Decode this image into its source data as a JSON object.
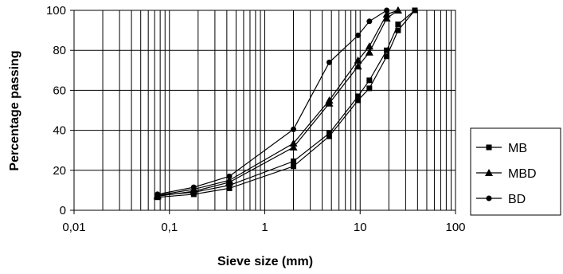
{
  "chart_data": {
    "type": "line",
    "title": "",
    "xlabel": "Sieve size (mm)",
    "ylabel": "Percentage passing",
    "x_scale": "log",
    "xlim": [
      0.01,
      100
    ],
    "ylim": [
      0,
      100
    ],
    "x_tick_labels": [
      "0,01",
      "0,1",
      "1",
      "10",
      "100"
    ],
    "x_tick_values": [
      0.01,
      0.1,
      1,
      10,
      100
    ],
    "y_tick_labels": [
      "0",
      "20",
      "40",
      "60",
      "80",
      "100"
    ],
    "y_tick_values": [
      0,
      20,
      40,
      60,
      80,
      100
    ],
    "grid": {
      "x_minor": true,
      "y_major": true
    },
    "legend": {
      "placement": "right"
    },
    "series": [
      {
        "name": "MB",
        "marker": "square",
        "curves": [
          {
            "x": [
              0.075,
              0.18,
              0.425,
              2,
              4.75,
              9.5,
              12.5,
              19,
              25,
              37.5
            ],
            "y": [
              6.5,
              8,
              11,
              22,
              37,
              55,
              61,
              77,
              90,
              100
            ]
          },
          {
            "x": [
              0.075,
              0.18,
              0.425,
              2,
              4.75,
              9.5,
              12.5,
              19,
              25,
              37.5
            ],
            "y": [
              7.5,
              9,
              12.5,
              24.5,
              38.5,
              57,
              65,
              80,
              93,
              100
            ]
          }
        ]
      },
      {
        "name": "MBD",
        "marker": "triangle",
        "curves": [
          {
            "x": [
              0.075,
              0.18,
              0.425,
              2,
              4.75,
              9.5,
              12.5,
              19,
              25
            ],
            "y": [
              7,
              9.5,
              14,
              31.5,
              53.5,
              72,
              79,
              96,
              100
            ]
          },
          {
            "x": [
              0.075,
              0.18,
              0.425,
              2,
              4.75,
              9.5,
              12.5,
              19,
              25
            ],
            "y": [
              7.5,
              10.5,
              15,
              33.5,
              55,
              75,
              82,
              98,
              100
            ]
          }
        ]
      },
      {
        "name": "BD",
        "marker": "circle",
        "curves": [
          {
            "x": [
              0.075,
              0.18,
              0.425,
              2,
              4.75,
              9.5,
              12.5,
              19
            ],
            "y": [
              8,
              11.5,
              17,
              40.5,
              74,
              87.5,
              94.5,
              100
            ]
          }
        ]
      }
    ]
  }
}
